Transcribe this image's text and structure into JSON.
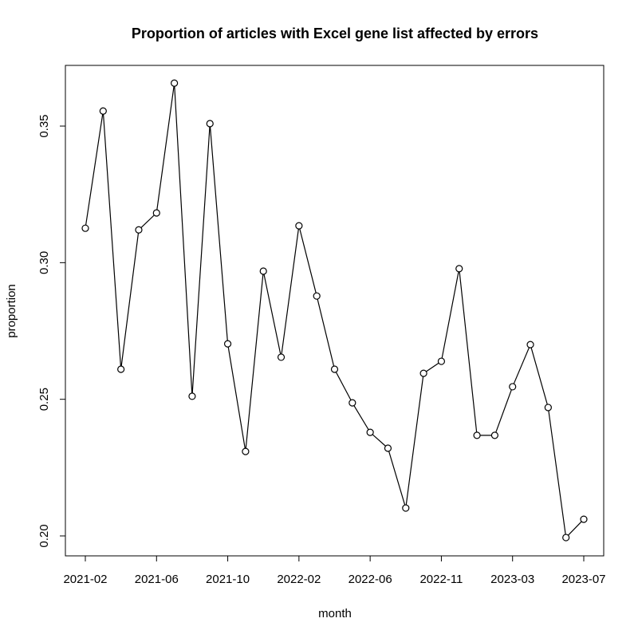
{
  "chart_data": {
    "type": "line",
    "title": "Proportion of articles with Excel gene list affected by errors",
    "xlabel": "month",
    "ylabel": "proportion",
    "categories": [
      "2021-02",
      null,
      null,
      null,
      "2021-06",
      null,
      null,
      null,
      "2021-10",
      null,
      null,
      null,
      "2022-02",
      null,
      null,
      null,
      "2022-06",
      null,
      null,
      null,
      "2022-11",
      null,
      null,
      null,
      "2023-03",
      null,
      null,
      null,
      "2023-07"
    ],
    "series": [
      {
        "name": "proportion",
        "color": "#000000",
        "values": [
          0.3126,
          0.3555,
          0.261,
          0.312,
          0.3182,
          0.3657,
          0.2511,
          0.3509,
          0.2703,
          0.2309,
          0.2969,
          0.2654,
          0.3135,
          0.2878,
          0.261,
          0.2487,
          0.2379,
          0.2321,
          0.2102,
          0.2595,
          0.2639,
          0.2978,
          0.2368,
          0.2368,
          0.2546,
          0.27,
          0.247,
          0.1994,
          0.2061
        ]
      }
    ],
    "ylim": [
      0.1927,
      0.3722
    ],
    "yticks": [
      {
        "value": 0.2,
        "label": "0.20"
      },
      0.25,
      {
        "value": 0.3,
        "label": "0.30"
      },
      0.35
    ]
  }
}
